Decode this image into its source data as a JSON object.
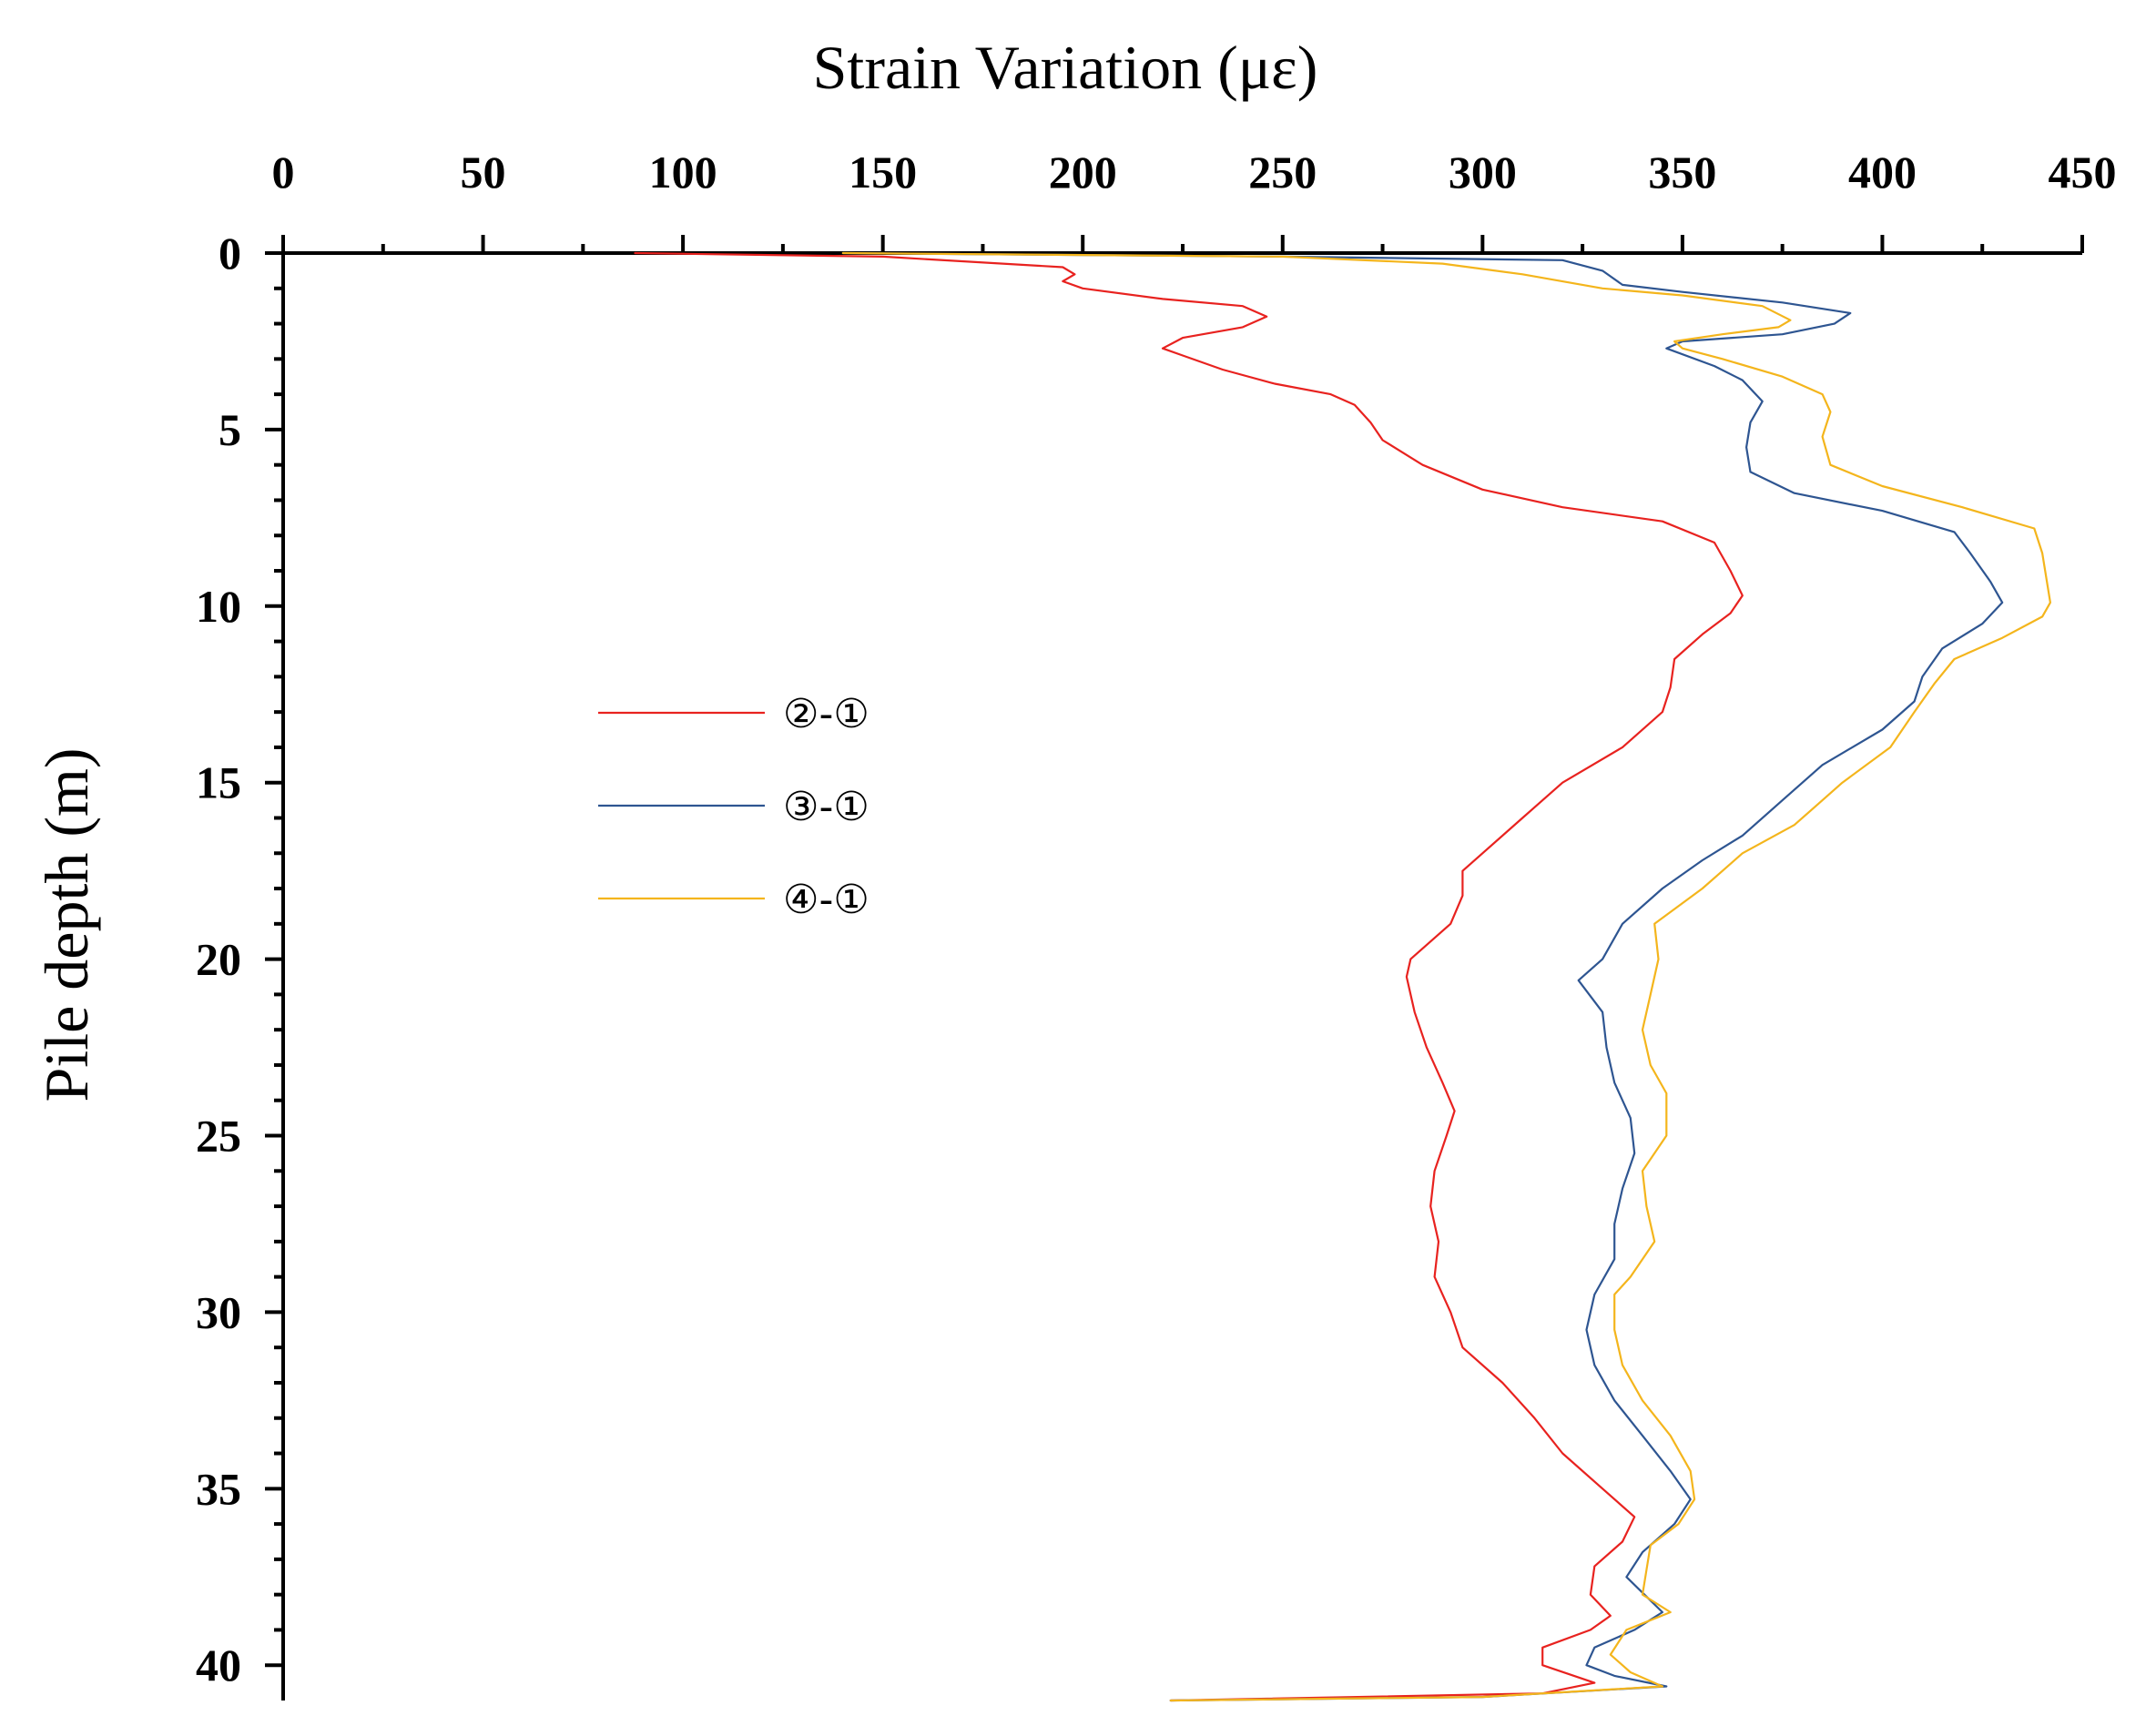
{
  "chart_data": {
    "type": "line",
    "title": "",
    "xlabel": "Strain Variation (με)",
    "ylabel": "Pile depth (m)",
    "xlim": [
      0,
      450
    ],
    "ylim": [
      0,
      41
    ],
    "x_ticks": [
      "0",
      "50",
      "100",
      "150",
      "200",
      "250",
      "300",
      "350",
      "400",
      "450"
    ],
    "y_ticks": [
      "0",
      "5",
      "10",
      "15",
      "20",
      "25",
      "30",
      "35",
      "40"
    ],
    "legend_position": "center-left",
    "series": [
      {
        "name": "②-①",
        "color": "#e8221f",
        "points": [
          [
            88,
            0
          ],
          [
            150,
            0.1
          ],
          [
            195,
            0.4
          ],
          [
            198,
            0.6
          ],
          [
            195,
            0.8
          ],
          [
            200,
            1.0
          ],
          [
            220,
            1.3
          ],
          [
            240,
            1.5
          ],
          [
            246,
            1.8
          ],
          [
            240,
            2.1
          ],
          [
            225,
            2.4
          ],
          [
            220,
            2.7
          ],
          [
            225,
            2.9
          ],
          [
            235,
            3.3
          ],
          [
            248,
            3.7
          ],
          [
            262,
            4.0
          ],
          [
            268,
            4.3
          ],
          [
            272,
            4.8
          ],
          [
            275,
            5.3
          ],
          [
            285,
            6.0
          ],
          [
            300,
            6.7
          ],
          [
            320,
            7.2
          ],
          [
            345,
            7.6
          ],
          [
            358,
            8.2
          ],
          [
            362,
            9.0
          ],
          [
            365,
            9.7
          ],
          [
            362,
            10.2
          ],
          [
            355,
            10.8
          ],
          [
            348,
            11.5
          ],
          [
            347,
            12.3
          ],
          [
            345,
            13.0
          ],
          [
            335,
            14.0
          ],
          [
            320,
            15.0
          ],
          [
            310,
            16.0
          ],
          [
            300,
            17.0
          ],
          [
            295,
            17.5
          ],
          [
            295,
            18.2
          ],
          [
            292,
            19.0
          ],
          [
            282,
            20.0
          ],
          [
            281,
            20.5
          ],
          [
            283,
            21.5
          ],
          [
            286,
            22.5
          ],
          [
            290,
            23.5
          ],
          [
            293,
            24.3
          ],
          [
            291,
            25.0
          ],
          [
            288,
            26.0
          ],
          [
            287,
            27.0
          ],
          [
            289,
            28.0
          ],
          [
            288,
            29.0
          ],
          [
            292,
            30.0
          ],
          [
            295,
            31.0
          ],
          [
            305,
            32.0
          ],
          [
            313,
            33.0
          ],
          [
            320,
            34.0
          ],
          [
            330,
            35.0
          ],
          [
            338,
            35.8
          ],
          [
            335,
            36.5
          ],
          [
            328,
            37.2
          ],
          [
            327,
            38.0
          ],
          [
            332,
            38.6
          ],
          [
            327,
            39.0
          ],
          [
            315,
            39.5
          ],
          [
            315,
            40.0
          ],
          [
            328,
            40.5
          ],
          [
            315,
            40.8
          ],
          [
            222,
            41
          ]
        ]
      },
      {
        "name": "③-①",
        "color": "#2e5591",
        "points": [
          [
            140,
            0
          ],
          [
            250,
            0.1
          ],
          [
            320,
            0.2
          ],
          [
            330,
            0.5
          ],
          [
            335,
            0.9
          ],
          [
            350,
            1.1
          ],
          [
            375,
            1.4
          ],
          [
            392,
            1.7
          ],
          [
            388,
            2.0
          ],
          [
            375,
            2.3
          ],
          [
            350,
            2.5
          ],
          [
            346,
            2.7
          ],
          [
            358,
            3.2
          ],
          [
            365,
            3.6
          ],
          [
            370,
            4.2
          ],
          [
            367,
            4.8
          ],
          [
            366,
            5.5
          ],
          [
            367,
            6.2
          ],
          [
            378,
            6.8
          ],
          [
            400,
            7.3
          ],
          [
            418,
            7.9
          ],
          [
            422,
            8.5
          ],
          [
            427,
            9.3
          ],
          [
            430,
            9.9
          ],
          [
            425,
            10.5
          ],
          [
            415,
            11.2
          ],
          [
            410,
            12.0
          ],
          [
            408,
            12.7
          ],
          [
            400,
            13.5
          ],
          [
            385,
            14.5
          ],
          [
            375,
            15.5
          ],
          [
            365,
            16.5
          ],
          [
            355,
            17.2
          ],
          [
            345,
            18.0
          ],
          [
            335,
            19.0
          ],
          [
            330,
            20.0
          ],
          [
            324,
            20.6
          ],
          [
            330,
            21.5
          ],
          [
            331,
            22.5
          ],
          [
            333,
            23.5
          ],
          [
            337,
            24.5
          ],
          [
            338,
            25.5
          ],
          [
            335,
            26.5
          ],
          [
            333,
            27.5
          ],
          [
            333,
            28.5
          ],
          [
            328,
            29.5
          ],
          [
            326,
            30.5
          ],
          [
            328,
            31.5
          ],
          [
            333,
            32.5
          ],
          [
            340,
            33.5
          ],
          [
            347,
            34.5
          ],
          [
            352,
            35.3
          ],
          [
            348,
            36.0
          ],
          [
            340,
            36.8
          ],
          [
            336,
            37.5
          ],
          [
            345,
            38.5
          ],
          [
            338,
            39.0
          ],
          [
            328,
            39.5
          ],
          [
            326,
            40.0
          ],
          [
            333,
            40.3
          ],
          [
            346,
            40.6
          ],
          [
            300,
            40.9
          ],
          [
            222,
            41
          ]
        ]
      },
      {
        "name": "④-①",
        "color": "#f4b51c",
        "points": [
          [
            140,
            0
          ],
          [
            250,
            0.1
          ],
          [
            290,
            0.3
          ],
          [
            310,
            0.6
          ],
          [
            330,
            1.0
          ],
          [
            350,
            1.2
          ],
          [
            370,
            1.5
          ],
          [
            377,
            1.9
          ],
          [
            374,
            2.1
          ],
          [
            360,
            2.3
          ],
          [
            348,
            2.5
          ],
          [
            350,
            2.7
          ],
          [
            360,
            3.0
          ],
          [
            375,
            3.5
          ],
          [
            385,
            4.0
          ],
          [
            387,
            4.5
          ],
          [
            385,
            5.2
          ],
          [
            387,
            6.0
          ],
          [
            400,
            6.6
          ],
          [
            420,
            7.2
          ],
          [
            438,
            7.8
          ],
          [
            440,
            8.5
          ],
          [
            441,
            9.2
          ],
          [
            442,
            9.9
          ],
          [
            440,
            10.3
          ],
          [
            430,
            10.9
          ],
          [
            418,
            11.5
          ],
          [
            413,
            12.2
          ],
          [
            408,
            13.0
          ],
          [
            402,
            14.0
          ],
          [
            390,
            15.0
          ],
          [
            385,
            15.5
          ],
          [
            378,
            16.2
          ],
          [
            365,
            17.0
          ],
          [
            360,
            17.5
          ],
          [
            355,
            18.0
          ],
          [
            343,
            19.0
          ],
          [
            344,
            20.0
          ],
          [
            342,
            21.0
          ],
          [
            340,
            22.0
          ],
          [
            342,
            23.0
          ],
          [
            346,
            23.8
          ],
          [
            346,
            25.0
          ],
          [
            340,
            26.0
          ],
          [
            341,
            27.0
          ],
          [
            343,
            28.0
          ],
          [
            337,
            29.0
          ],
          [
            333,
            29.5
          ],
          [
            333,
            30.5
          ],
          [
            335,
            31.5
          ],
          [
            340,
            32.5
          ],
          [
            347,
            33.5
          ],
          [
            352,
            34.5
          ],
          [
            353,
            35.3
          ],
          [
            349,
            36.0
          ],
          [
            342,
            36.6
          ],
          [
            341,
            37.3
          ],
          [
            340,
            38.0
          ],
          [
            347,
            38.5
          ],
          [
            336,
            39.0
          ],
          [
            332,
            39.7
          ],
          [
            337,
            40.2
          ],
          [
            345,
            40.6
          ],
          [
            300,
            40.9
          ],
          [
            222,
            41
          ]
        ]
      }
    ]
  }
}
